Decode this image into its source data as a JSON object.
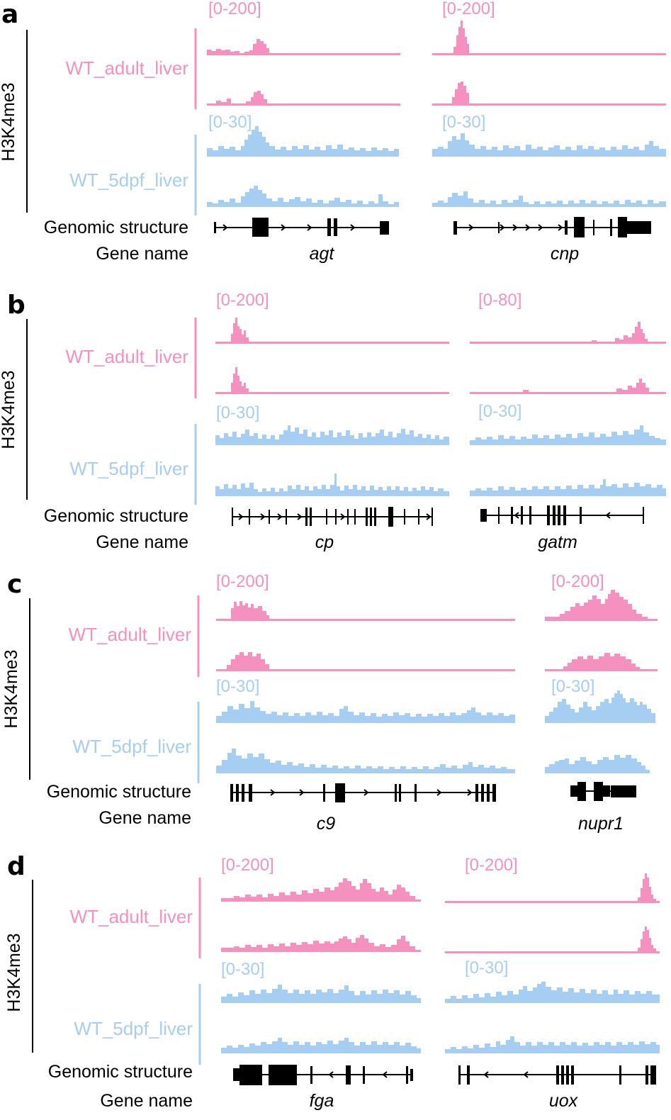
{
  "mark": "H3K4me3",
  "colors": {
    "adult": "#f590bf",
    "larval": "#a6cdf2",
    "gene": "#000000"
  },
  "row_labels": {
    "genomic": "Genomic structure",
    "gene_name": "Gene name"
  },
  "panels": [
    {
      "letter": "a",
      "adult_label": "WT_adult_liver",
      "larval_label": "WT_5dpf_liver",
      "genes": [
        {
          "name": "agt",
          "adult_range": "[0-200]",
          "larval_range": "[0-30]"
        },
        {
          "name": "cnp",
          "adult_range": "[0-200]",
          "larval_range": "[0-30]"
        }
      ]
    },
    {
      "letter": "b",
      "adult_label": "WT_adult_liver",
      "larval_label": "WT_5dpf_liver",
      "genes": [
        {
          "name": "cp",
          "adult_range": "[0-200]",
          "larval_range": "[0-30]"
        },
        {
          "name": "gatm",
          "adult_range": "[0-80]",
          "larval_range": "[0-30]"
        }
      ]
    },
    {
      "letter": "c",
      "adult_label": "WT_adult_liver",
      "larval_label": "WT_5dpf_liver",
      "genes": [
        {
          "name": "c9",
          "adult_range": "[0-200]",
          "larval_range": "[0-30]"
        },
        {
          "name": "nupr1",
          "adult_range": "[0-200]",
          "larval_range": "[0-30]"
        }
      ]
    },
    {
      "letter": "d",
      "adult_label": "WT_adult_liver",
      "larval_label": "WT_5dpf_liver",
      "genes": [
        {
          "name": "fga",
          "adult_range": "[0-200]",
          "larval_range": "[0-30]"
        },
        {
          "name": "uox",
          "adult_range": "[0-200]",
          "larval_range": "[0-30]"
        }
      ]
    }
  ]
}
